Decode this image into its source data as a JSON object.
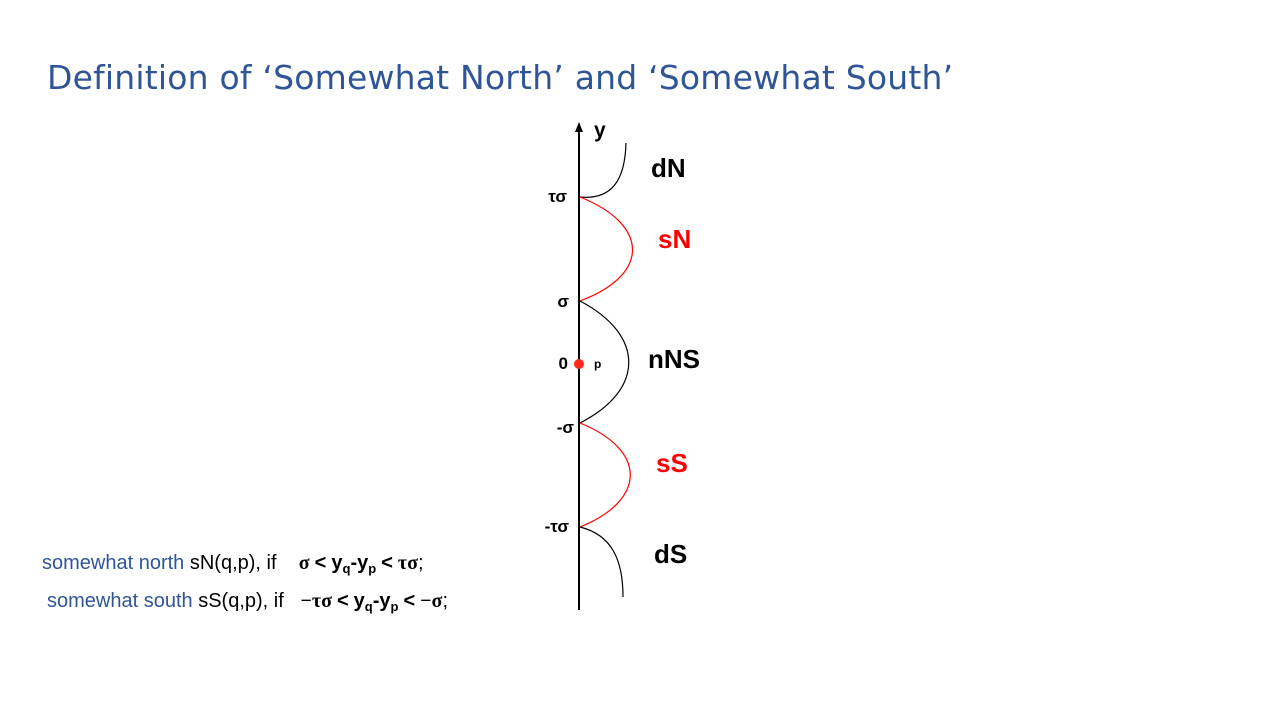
{
  "title": "Definition of ‘Somewhat North’ and ‘Somewhat South’",
  "axis": {
    "label": "y",
    "ticks": [
      "τσ",
      "σ",
      "0",
      "-σ",
      "-τσ"
    ],
    "point_label": "p"
  },
  "regions": {
    "dN": {
      "label": "dN",
      "color": "#000000"
    },
    "sN": {
      "label": "sN",
      "color": "#ff0000"
    },
    "nNS": {
      "label": "nNS",
      "color": "#000000"
    },
    "sS": {
      "label": "sS",
      "color": "#ff0000"
    },
    "dS": {
      "label": "dS",
      "color": "#000000"
    }
  },
  "definitions": [
    {
      "term": "somewhat north",
      "name": "sN(q,p), if",
      "cond_left": "σ",
      "lt1": "<",
      "yq": "y",
      "q": "q",
      "dash": "-",
      "yp": "y",
      "p": "p",
      "lt2": "<",
      "cond_right": "τσ",
      "end": ";"
    },
    {
      "term": "somewhat south",
      "name": "sS(q,p), if",
      "cond_left": "−τσ",
      "lt1": "<",
      "yq": "y",
      "q": "q",
      "dash": "-",
      "yp": "y",
      "p": "p",
      "lt2": "<",
      "cond_right": "−σ",
      "end": ";"
    }
  ],
  "colors": {
    "title": "#2f5597",
    "accent_red": "#ff0000",
    "point": "#ff2a1a"
  }
}
